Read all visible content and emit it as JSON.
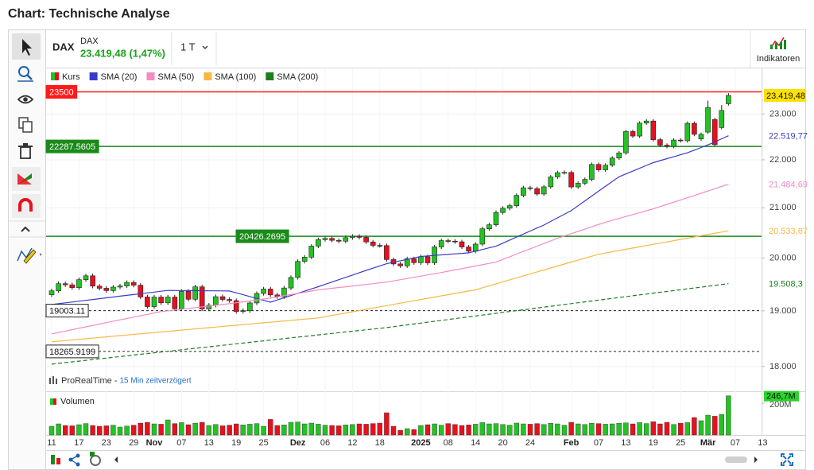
{
  "header": {
    "title": "Chart: Technische Analyse"
  },
  "instrument": {
    "symbol": "DAX",
    "name": "DAX",
    "quote": "23.419,48 (1,47%)",
    "interval": "1 T"
  },
  "toolbar": {
    "indicators": "Indikatoren"
  },
  "source": {
    "vendor": "ProRealTime - ",
    "delay": "15 Min zeitverzögert"
  },
  "chart_data": {
    "type": "candlestick",
    "log_scale": true,
    "grid": true,
    "categories": [
      "11",
      null,
      null,
      null,
      "17",
      null,
      null,
      null,
      "23",
      null,
      null,
      null,
      "29",
      null,
      null,
      "Nov",
      null,
      null,
      null,
      "07",
      null,
      null,
      null,
      "13",
      null,
      null,
      null,
      "19",
      null,
      null,
      null,
      "25",
      null,
      null,
      null,
      null,
      "Dez",
      null,
      null,
      null,
      "06",
      null,
      null,
      null,
      "12",
      null,
      null,
      null,
      "18",
      null,
      null,
      null,
      null,
      null,
      "2025",
      null,
      null,
      null,
      "08",
      null,
      null,
      null,
      "14",
      null,
      null,
      null,
      "20",
      null,
      null,
      null,
      "24",
      null,
      null,
      null,
      null,
      null,
      "Feb",
      null,
      null,
      null,
      "07",
      null,
      null,
      null,
      "13",
      null,
      null,
      null,
      "19",
      null,
      null,
      null,
      "25",
      null,
      null,
      null,
      "Mär",
      null,
      null,
      null,
      "07",
      null,
      null,
      null,
      "13"
    ],
    "ylim": [
      17600,
      23600
    ],
    "yticks": [
      {
        "value": 18000,
        "label": "18.000"
      },
      {
        "value": 19000,
        "label": "19.000"
      },
      {
        "value": 20000,
        "label": "20.000"
      },
      {
        "value": 21000,
        "label": "21.000"
      },
      {
        "value": 22000,
        "label": "22.000"
      },
      {
        "value": 23000,
        "label": "23.000"
      }
    ],
    "series": [
      {
        "name": "Kurs",
        "type": "candlestick",
        "up_color": "#22c322",
        "down_color": "#e8101e",
        "last_label": "23.419,48",
        "open": [
          19300,
          19373,
          19508,
          19486,
          19432,
          19583,
          19657,
          19461,
          19421,
          19377,
          19443,
          19464,
          19531,
          19479,
          19257,
          19078,
          19255,
          19148,
          19256,
          19039,
          19362,
          19215,
          19448,
          19034,
          19104,
          19263,
          19211,
          19189,
          18988,
          19004,
          19146,
          19323,
          19406,
          19296,
          19262,
          19426,
          19626,
          19934,
          20016,
          20232,
          20359,
          20384,
          20346,
          20329,
          20399,
          20426,
          20405,
          20314,
          20246,
          20242,
          19970,
          19885,
          19848,
          19984,
          19909,
          20024,
          19906,
          20216,
          20340,
          20330,
          20317,
          20215,
          20132,
          20271,
          20575,
          20655,
          20903,
          20990,
          21042,
          21254,
          21411,
          21394,
          21282,
          21430,
          21637,
          21727,
          21732,
          21428,
          21505,
          21586,
          21902,
          21787,
          21885,
          22037,
          22148,
          22612,
          22513,
          22798,
          22844,
          22434,
          22315,
          22287,
          22426,
          22410,
          22794,
          22450,
          22600,
          22876,
          22700,
          23230,
          null,
          null,
          null,
          null,
          null
        ],
        "high": [
          19413,
          19548,
          19548,
          19526,
          19623,
          19697,
          19697,
          19501,
          19461,
          19483,
          19504,
          19571,
          19571,
          19519,
          19297,
          19295,
          19295,
          19296,
          19296,
          19402,
          19402,
          19488,
          19488,
          19144,
          19303,
          19303,
          19251,
          19229,
          19044,
          19186,
          19363,
          19446,
          19446,
          19336,
          19466,
          19666,
          19974,
          20056,
          20272,
          20399,
          20424,
          20424,
          20386,
          20439,
          20466,
          20466,
          20445,
          20354,
          20286,
          20282,
          20010,
          19925,
          20024,
          20024,
          20064,
          20064,
          20256,
          20380,
          20380,
          20370,
          20357,
          20255,
          20311,
          20615,
          20695,
          20943,
          21030,
          21082,
          21294,
          21451,
          21451,
          21434,
          21470,
          21677,
          21767,
          21772,
          21772,
          21545,
          21626,
          21942,
          21942,
          21925,
          22077,
          22188,
          22652,
          22652,
          22838,
          22884,
          22884,
          22474,
          22355,
          22466,
          22466,
          22834,
          22834,
          22591,
          23300,
          22916,
          23200,
          23470,
          null,
          null,
          null,
          null,
          null
        ],
        "low": [
          19260,
          19333,
          19446,
          19392,
          19392,
          19543,
          19421,
          19381,
          19337,
          19337,
          19403,
          19424,
          19439,
          19217,
          19038,
          19038,
          19108,
          19108,
          18999,
          18999,
          19175,
          19175,
          18994,
          18994,
          19064,
          19171,
          19149,
          18948,
          18948,
          18964,
          19106,
          19283,
          19256,
          19222,
          19222,
          19386,
          19586,
          19894,
          19976,
          20192,
          20319,
          20306,
          20289,
          20289,
          20359,
          20365,
          20274,
          20206,
          20202,
          19930,
          19845,
          19808,
          19808,
          19869,
          19869,
          19866,
          19866,
          20176,
          20290,
          20277,
          20175,
          20092,
          20092,
          20231,
          20535,
          20615,
          20863,
          20950,
          21002,
          21214,
          21354,
          21242,
          21242,
          21390,
          21597,
          21687,
          21388,
          21388,
          21465,
          21546,
          21747,
          21747,
          21845,
          21997,
          22108,
          22473,
          22473,
          22758,
          22394,
          22275,
          22247,
          22247,
          22370,
          22370,
          22511,
          22410,
          22560,
          22287,
          22660,
          23190,
          null,
          null,
          null,
          null,
          null
        ],
        "close": [
          19373,
          19508,
          19486,
          19432,
          19583,
          19657,
          19461,
          19421,
          19377,
          19443,
          19464,
          19531,
          19479,
          19257,
          19078,
          19255,
          19148,
          19256,
          19039,
          19362,
          19215,
          19448,
          19034,
          19104,
          19263,
          19211,
          19189,
          18988,
          19004,
          19146,
          19323,
          19406,
          19296,
          19262,
          19426,
          19626,
          19934,
          20016,
          20232,
          20359,
          20384,
          20346,
          20329,
          20399,
          20426,
          20405,
          20314,
          20246,
          20242,
          19970,
          19885,
          19848,
          19984,
          19909,
          20024,
          19906,
          20216,
          20340,
          20330,
          20317,
          20215,
          20132,
          20271,
          20575,
          20655,
          20903,
          20990,
          21042,
          21254,
          21411,
          21394,
          21282,
          21430,
          21637,
          21727,
          21732,
          21428,
          21505,
          21586,
          21902,
          21787,
          21885,
          22037,
          22148,
          22612,
          22513,
          22798,
          22844,
          22434,
          22315,
          22287,
          22426,
          22410,
          22794,
          22551,
          22551,
          23147,
          22327,
          23081,
          23419.48,
          null,
          null,
          null,
          null,
          null
        ]
      },
      {
        "name": "SMA (20)",
        "type": "line",
        "color": "#3b3bc8",
        "last_label": "22.519,77",
        "values": [
          19117,
          19132,
          19148,
          19163,
          19179,
          19194,
          19210,
          19225,
          19241,
          19256,
          19272,
          19287,
          19303,
          19318,
          19334,
          19349,
          19365,
          19380,
          19379,
          19378,
          19377,
          19376,
          19374,
          19373,
          19372,
          19371,
          19370,
          19335,
          19300,
          19265,
          19230,
          19195,
          19160,
          19201,
          19243,
          19284,
          19326,
          19367,
          19409,
          19450,
          19494,
          19539,
          19583,
          19627,
          19671,
          19716,
          19760,
          19803,
          19847,
          19890,
          19918,
          19946,
          19974,
          20002,
          20030,
          20040,
          20050,
          20060,
          20070,
          20080,
          20090,
          20100,
          20133,
          20165,
          20198,
          20230,
          20290,
          20350,
          20410,
          20470,
          20530,
          20590,
          20650,
          20723,
          20795,
          20868,
          20940,
          21040,
          21140,
          21240,
          21340,
          21440,
          21540,
          21640,
          21700,
          21760,
          21820,
          21880,
          21940,
          21982,
          22024,
          22066,
          22108,
          22150,
          22207,
          22263,
          22320,
          22387,
          22453,
          22519.77,
          null,
          null,
          null,
          null,
          null
        ]
      },
      {
        "name": "SMA (50)",
        "type": "line",
        "color": "#f28cc4",
        "last_label": "21.484,69",
        "values": [
          18580,
          18605,
          18631,
          18656,
          18682,
          18707,
          18732,
          18758,
          18783,
          18809,
          18834,
          18859,
          18885,
          18910,
          18935,
          18961,
          18986,
          19001,
          19015,
          19030,
          19044,
          19059,
          19073,
          19088,
          19102,
          19117,
          19131,
          19149,
          19166,
          19184,
          19201,
          19219,
          19236,
          19258,
          19280,
          19303,
          19325,
          19347,
          19369,
          19391,
          19406,
          19420,
          19435,
          19449,
          19464,
          19479,
          19493,
          19508,
          19522,
          19537,
          19560,
          19583,
          19606,
          19629,
          19651,
          19674,
          19697,
          19720,
          19745,
          19770,
          19795,
          19820,
          19845,
          19870,
          19895,
          19920,
          19972,
          20024,
          20076,
          20128,
          20179,
          20231,
          20283,
          20335,
          20387,
          20432,
          20478,
          20523,
          20569,
          20614,
          20660,
          20705,
          20744,
          20783,
          20822,
          20861,
          20899,
          20938,
          20977,
          21023,
          21068,
          21114,
          21159,
          21205,
          21250,
          21297,
          21344,
          21391,
          21438,
          21484.69,
          null,
          null,
          null,
          null,
          null
        ]
      },
      {
        "name": "SMA (100)",
        "type": "line",
        "color": "#f7b844",
        "last_label": "20.533,67",
        "values": [
          18437,
          18448,
          18459,
          18470,
          18481,
          18492,
          18503,
          18515,
          18526,
          18537,
          18548,
          18559,
          18570,
          18581,
          18592,
          18603,
          18614,
          18625,
          18636,
          18647,
          18659,
          18670,
          18681,
          18692,
          18703,
          18714,
          18725,
          18736,
          18747,
          18758,
          18769,
          18780,
          18791,
          18803,
          18814,
          18825,
          18836,
          18847,
          18858,
          18869,
          18892,
          18914,
          18937,
          18960,
          18983,
          19005,
          19028,
          19051,
          19074,
          19096,
          19119,
          19142,
          19164,
          19187,
          19210,
          19233,
          19255,
          19278,
          19301,
          19324,
          19346,
          19369,
          19391,
          19429,
          19467,
          19505,
          19543,
          19580,
          19618,
          19656,
          19694,
          19732,
          19769,
          19807,
          19845,
          19883,
          19921,
          19959,
          19996,
          20034,
          20072,
          20096,
          20121,
          20145,
          20169,
          20194,
          20218,
          20242,
          20267,
          20291,
          20315,
          20339,
          20364,
          20388,
          20412,
          20437,
          20461,
          20485,
          20510,
          20533.67,
          null,
          null,
          null,
          null,
          null
        ]
      },
      {
        "name": "SMA (200)",
        "type": "line",
        "color": "#1f7d1f",
        "dashed": true,
        "last_label": "19.508,3",
        "values": [
          18042,
          18055,
          18069,
          18082,
          18095,
          18109,
          18122,
          18135,
          18148,
          18162,
          18175,
          18188,
          18202,
          18215,
          18228,
          18242,
          18255,
          18268,
          18281,
          18295,
          18308,
          18321,
          18335,
          18348,
          18361,
          18375,
          18388,
          18401,
          18414,
          18428,
          18441,
          18454,
          18468,
          18481,
          18494,
          18508,
          18521,
          18534,
          18547,
          18561,
          18574,
          18587,
          18601,
          18614,
          18627,
          18641,
          18654,
          18667,
          18680,
          18694,
          18710,
          18727,
          18743,
          18759,
          18775,
          18792,
          18808,
          18824,
          18840,
          18857,
          18873,
          18889,
          18905,
          18922,
          18938,
          18954,
          18971,
          18987,
          19003,
          19019,
          19036,
          19052,
          19068,
          19084,
          19101,
          19117,
          19133,
          19150,
          19166,
          19182,
          19198,
          19215,
          19231,
          19247,
          19263,
          19280,
          19296,
          19312,
          19329,
          19345,
          19361,
          19377,
          19394,
          19410,
          19426,
          19442,
          19459,
          19475,
          19491,
          19508.3,
          null,
          null,
          null,
          null,
          null
        ]
      }
    ],
    "levels": [
      {
        "value": 23500,
        "color": "#ff1a1a",
        "style": "solid"
      },
      {
        "value": 22287.5605,
        "color": "#1a8a1a",
        "style": "solid"
      },
      {
        "value": 20426.2695,
        "color": "#1a8a1a",
        "style": "solid"
      },
      {
        "value": 19003.11,
        "color": "#222222",
        "style": "dotted"
      },
      {
        "value": 18265.9199,
        "color": "#222222",
        "style": "dotted"
      }
    ],
    "volume": {
      "name": "Volumen",
      "ylim": [
        0,
        250
      ],
      "yticks": [
        {
          "value": 200,
          "label": "200M"
        }
      ],
      "last_label": "246,7M",
      "values": [
        55,
        70,
        60,
        58,
        65,
        72,
        60,
        55,
        58,
        62,
        50,
        56,
        62,
        75,
        80,
        70,
        68,
        95,
        72,
        78,
        65,
        74,
        80,
        60,
        66,
        58,
        62,
        70,
        64,
        68,
        72,
        55,
        98,
        60,
        64,
        80,
        82,
        70,
        75,
        68,
        62,
        60,
        58,
        64,
        66,
        70,
        68,
        72,
        75,
        140,
        55,
        30,
        40,
        35,
        60,
        65,
        70,
        62,
        72,
        66,
        60,
        64,
        68,
        78,
        70,
        72,
        66,
        62,
        75,
        70,
        68,
        72,
        66,
        74,
        70,
        62,
        80,
        70,
        66,
        74,
        72,
        68,
        70,
        74,
        76,
        70,
        78,
        72,
        84,
        70,
        80,
        66,
        74,
        78,
        110,
        90,
        125,
        118,
        130,
        246.7,
        null,
        null,
        null,
        null,
        null
      ]
    }
  }
}
